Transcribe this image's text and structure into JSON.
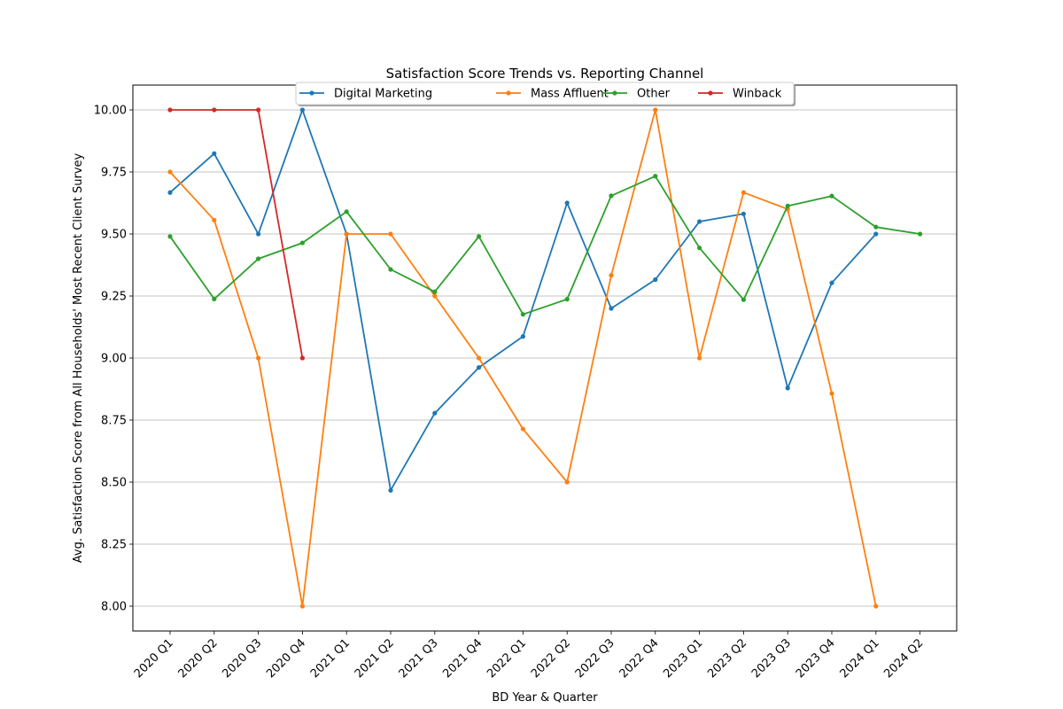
{
  "chart_data": {
    "type": "line",
    "title": "Satisfaction Score Trends vs. Reporting Channel",
    "xlabel": "BD Year & Quarter",
    "ylabel": "Avg. Satisfaction Score from All Households' Most Recent Client Survey",
    "categories": [
      "2020 Q1",
      "2020 Q2",
      "2020 Q3",
      "2020 Q4",
      "2021 Q1",
      "2021 Q2",
      "2021 Q3",
      "2021 Q4",
      "2022 Q1",
      "2022 Q2",
      "2022 Q3",
      "2022 Q4",
      "2023 Q1",
      "2023 Q2",
      "2023 Q3",
      "2023 Q4",
      "2024 Q1",
      "2024 Q2"
    ],
    "ylim": [
      7.9,
      10.1
    ],
    "yticks": [
      "8.00",
      "8.25",
      "8.50",
      "8.75",
      "9.00",
      "9.25",
      "9.50",
      "9.75",
      "10.00"
    ],
    "grid": "horizontal",
    "legend_position": "top-center",
    "series": [
      {
        "name": "Digital Marketing",
        "color": "#1f77b4",
        "values": [
          9.667,
          9.824,
          9.5,
          10.0,
          9.5,
          8.467,
          8.778,
          8.962,
          9.087,
          9.625,
          9.2,
          9.316,
          9.55,
          9.581,
          8.879,
          9.303,
          9.5,
          null
        ]
      },
      {
        "name": "Mass Affluent",
        "color": "#ff7f0e",
        "values": [
          9.75,
          9.556,
          9.0,
          8.0,
          9.5,
          9.5,
          9.25,
          9.0,
          8.714,
          8.5,
          9.333,
          10.0,
          9.0,
          9.667,
          9.6,
          8.857,
          8.0,
          null
        ]
      },
      {
        "name": "Other",
        "color": "#2ca02c",
        "values": [
          9.49,
          9.238,
          9.4,
          9.464,
          9.59,
          9.357,
          9.267,
          9.49,
          9.176,
          9.237,
          9.654,
          9.733,
          9.444,
          9.235,
          9.613,
          9.653,
          9.528,
          9.5
        ]
      },
      {
        "name": "Winback",
        "color": "#d62728",
        "values": [
          10.0,
          10.0,
          10.0,
          9.0,
          null,
          null,
          null,
          null,
          null,
          null,
          null,
          null,
          null,
          null,
          null,
          null,
          null,
          null
        ]
      }
    ]
  }
}
